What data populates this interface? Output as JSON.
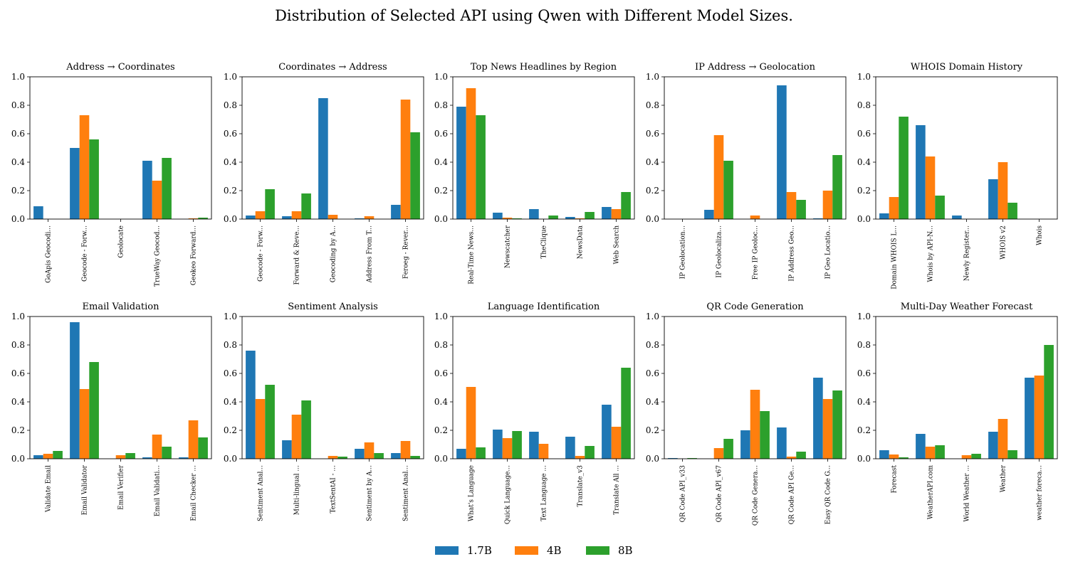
{
  "figure": {
    "title": "Distribution of Selected API using Qwen with Different Model Sizes."
  },
  "legend": [
    {
      "name": "1.7B",
      "color": "#1f77b4"
    },
    {
      "name": "4B",
      "color": "#ff7f0e"
    },
    {
      "name": "8B",
      "color": "#2ca02c"
    }
  ],
  "chart_data": [
    {
      "type": "bar",
      "title": "Address → Coordinates",
      "ylim": [
        0,
        1
      ],
      "yticks": [
        "0.0",
        "0.2",
        "0.4",
        "0.6",
        "0.8",
        "1.0"
      ],
      "categories": [
        "GoApis Geocodi...",
        "Geocode - Forw...",
        "Geolocate",
        "TrueWay Geocod...",
        "Geokeo Forward..."
      ],
      "series": [
        {
          "name": "1.7B",
          "values": [
            0.09,
            0.5,
            0.0,
            0.41,
            0.0
          ]
        },
        {
          "name": "4B",
          "values": [
            0.0,
            0.73,
            0.0,
            0.27,
            0.005
          ]
        },
        {
          "name": "8B",
          "values": [
            0.0,
            0.56,
            0.0,
            0.43,
            0.01
          ]
        }
      ]
    },
    {
      "type": "bar",
      "title": "Coordinates → Address",
      "ylim": [
        0,
        1
      ],
      "yticks": [
        "0.0",
        "0.2",
        "0.4",
        "0.6",
        "0.8",
        "1.0"
      ],
      "categories": [
        "Geocode - Forw...",
        "Forward & Reve...",
        "Geocoding by A...",
        "Address From T...",
        "Feroeg - Rever..."
      ],
      "series": [
        {
          "name": "1.7B",
          "values": [
            0.025,
            0.02,
            0.85,
            0.005,
            0.1
          ]
        },
        {
          "name": "4B",
          "values": [
            0.055,
            0.055,
            0.03,
            0.02,
            0.84
          ]
        },
        {
          "name": "8B",
          "values": [
            0.21,
            0.18,
            0.0,
            0.0,
            0.61
          ]
        }
      ]
    },
    {
      "type": "bar",
      "title": "Top News Headlines by Region",
      "ylim": [
        0,
        1
      ],
      "yticks": [
        "0.0",
        "0.2",
        "0.4",
        "0.6",
        "0.8",
        "1.0"
      ],
      "categories": [
        "Real-Time News...",
        "Newscatcher",
        "TheClique",
        "NewsData",
        "Web Search"
      ],
      "series": [
        {
          "name": "1.7B",
          "values": [
            0.79,
            0.045,
            0.07,
            0.015,
            0.085
          ]
        },
        {
          "name": "4B",
          "values": [
            0.92,
            0.01,
            0.0,
            0.005,
            0.07
          ]
        },
        {
          "name": "8B",
          "values": [
            0.73,
            0.005,
            0.025,
            0.05,
            0.19
          ]
        }
      ]
    },
    {
      "type": "bar",
      "title": "IP Address → Geolocation",
      "ylim": [
        0,
        1
      ],
      "yticks": [
        "0.0",
        "0.2",
        "0.4",
        "0.6",
        "0.8",
        "1.0"
      ],
      "categories": [
        "IP Geolocation...",
        "IP Geolocaliza...",
        "Free IP Geoloc...",
        "IP Address Geo...",
        "IP Geo Locatio..."
      ],
      "series": [
        {
          "name": "1.7B",
          "values": [
            0.0,
            0.065,
            0.0,
            0.94,
            0.005
          ]
        },
        {
          "name": "4B",
          "values": [
            0.0,
            0.59,
            0.025,
            0.19,
            0.2
          ]
        },
        {
          "name": "8B",
          "values": [
            0.0,
            0.41,
            0.0,
            0.135,
            0.45
          ]
        }
      ]
    },
    {
      "type": "bar",
      "title": "WHOIS Domain History",
      "ylim": [
        0,
        1
      ],
      "yticks": [
        "0.0",
        "0.2",
        "0.4",
        "0.6",
        "0.8",
        "1.0"
      ],
      "categories": [
        "Domain WHOIS L...",
        "Whois by API-N...",
        "Newly Register...",
        "WHOIS v2",
        "Whois"
      ],
      "series": [
        {
          "name": "1.7B",
          "values": [
            0.04,
            0.66,
            0.025,
            0.28,
            0.0
          ]
        },
        {
          "name": "4B",
          "values": [
            0.155,
            0.44,
            0.0,
            0.4,
            0.0
          ]
        },
        {
          "name": "8B",
          "values": [
            0.72,
            0.165,
            0.0,
            0.115,
            0.0
          ]
        }
      ]
    },
    {
      "type": "bar",
      "title": "Email Validation",
      "ylim": [
        0,
        1
      ],
      "yticks": [
        "0.0",
        "0.2",
        "0.4",
        "0.6",
        "0.8",
        "1.0"
      ],
      "categories": [
        "Validate Email",
        "Email Validator",
        "Email Verifier",
        "Email Validati...",
        "Email Checker ..."
      ],
      "series": [
        {
          "name": "1.7B",
          "values": [
            0.025,
            0.96,
            0.0,
            0.01,
            0.01
          ]
        },
        {
          "name": "4B",
          "values": [
            0.035,
            0.49,
            0.025,
            0.17,
            0.27
          ]
        },
        {
          "name": "8B",
          "values": [
            0.055,
            0.68,
            0.04,
            0.085,
            0.15
          ]
        }
      ]
    },
    {
      "type": "bar",
      "title": "Sentiment Analysis",
      "ylim": [
        0,
        1
      ],
      "yticks": [
        "0.0",
        "0.2",
        "0.4",
        "0.6",
        "0.8",
        "1.0"
      ],
      "categories": [
        "Sentiment Anal...",
        "Multi-lingual ...",
        "TextSentAI - ...",
        "Sentiment by A...",
        "Sentiment Anal..."
      ],
      "series": [
        {
          "name": "1.7B",
          "values": [
            0.76,
            0.13,
            0.0,
            0.07,
            0.04
          ]
        },
        {
          "name": "4B",
          "values": [
            0.42,
            0.31,
            0.02,
            0.115,
            0.125
          ]
        },
        {
          "name": "8B",
          "values": [
            0.52,
            0.41,
            0.015,
            0.04,
            0.02
          ]
        }
      ]
    },
    {
      "type": "bar",
      "title": "Language Identification",
      "ylim": [
        0,
        1
      ],
      "yticks": [
        "0.0",
        "0.2",
        "0.4",
        "0.6",
        "0.8",
        "1.0"
      ],
      "categories": [
        "What's Language",
        "Quick Language...",
        "Text Language ...",
        "Translate_v3",
        "Translate All ..."
      ],
      "series": [
        {
          "name": "1.7B",
          "values": [
            0.07,
            0.205,
            0.19,
            0.155,
            0.38
          ]
        },
        {
          "name": "4B",
          "values": [
            0.505,
            0.145,
            0.105,
            0.02,
            0.225
          ]
        },
        {
          "name": "8B",
          "values": [
            0.08,
            0.195,
            0.0,
            0.09,
            0.64
          ]
        }
      ]
    },
    {
      "type": "bar",
      "title": "QR Code Generation",
      "ylim": [
        0,
        1
      ],
      "yticks": [
        "0.0",
        "0.2",
        "0.4",
        "0.6",
        "0.8",
        "1.0"
      ],
      "categories": [
        "QR Code API_v33",
        "QR Code API_v67",
        "QR Code Genera...",
        "QR Code API Ge...",
        "Easy QR Code G..."
      ],
      "series": [
        {
          "name": "1.7B",
          "values": [
            0.005,
            0.0,
            0.2,
            0.22,
            0.57
          ]
        },
        {
          "name": "4B",
          "values": [
            0.0,
            0.075,
            0.485,
            0.015,
            0.42
          ]
        },
        {
          "name": "8B",
          "values": [
            0.005,
            0.14,
            0.335,
            0.05,
            0.48
          ]
        }
      ]
    },
    {
      "type": "bar",
      "title": "Multi-Day Weather Forecast",
      "ylim": [
        0,
        1
      ],
      "yticks": [
        "0.0",
        "0.2",
        "0.4",
        "0.6",
        "0.8",
        "1.0"
      ],
      "categories": [
        "Forecast",
        "WeatherAPI.com",
        "World Weather ...",
        "Weather",
        "weather foreca..."
      ],
      "series": [
        {
          "name": "1.7B",
          "values": [
            0.06,
            0.175,
            0.0,
            0.19,
            0.57
          ]
        },
        {
          "name": "4B",
          "values": [
            0.03,
            0.085,
            0.025,
            0.28,
            0.585
          ]
        },
        {
          "name": "8B",
          "values": [
            0.01,
            0.095,
            0.035,
            0.06,
            0.8
          ]
        }
      ]
    }
  ]
}
